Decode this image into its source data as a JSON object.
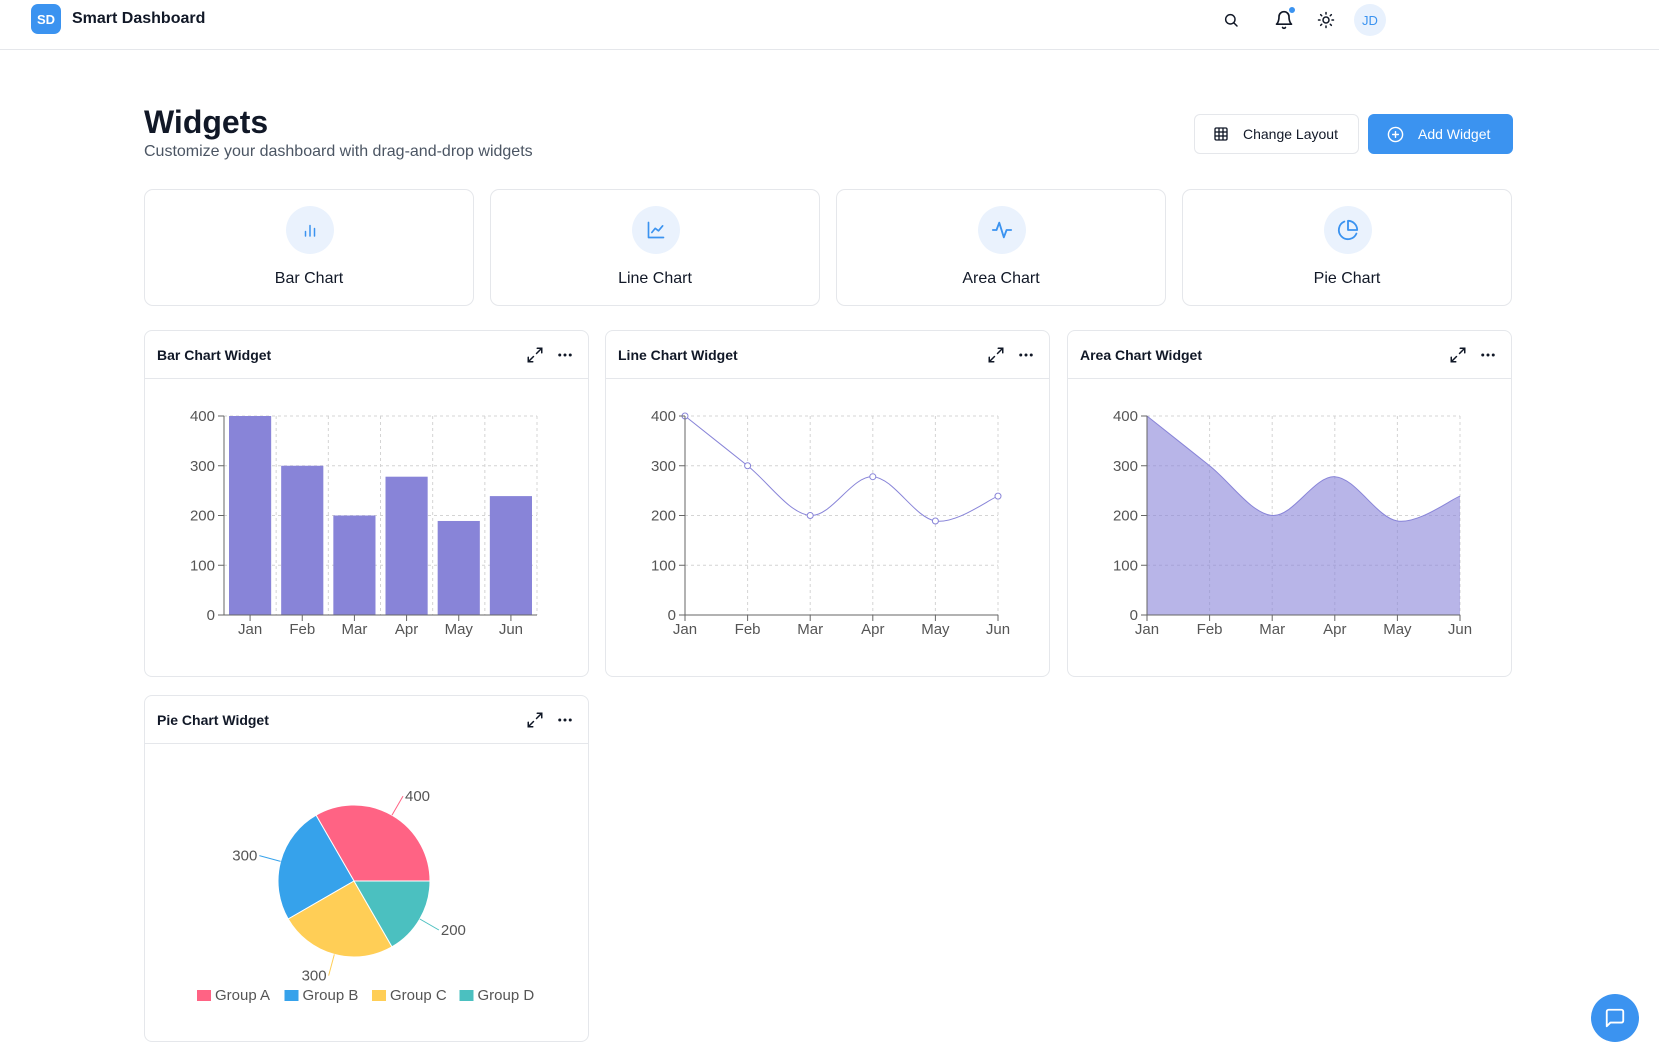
{
  "app": {
    "logo_text": "SD",
    "title": "Smart Dashboard",
    "avatar_initials": "JD",
    "accent": "#3b93f0"
  },
  "header": {
    "title": "Widgets",
    "subtitle": "Customize your dashboard with drag-and-drop widgets",
    "change_layout_label": "Change Layout",
    "add_widget_label": "Add Widget"
  },
  "widget_types": [
    {
      "label": "Bar Chart",
      "icon": "bar-chart-icon"
    },
    {
      "label": "Line Chart",
      "icon": "line-chart-icon"
    },
    {
      "label": "Area Chart",
      "icon": "activity-icon"
    },
    {
      "label": "Pie Chart",
      "icon": "pie-chart-icon"
    }
  ],
  "widgets": {
    "bar": {
      "title": "Bar Chart Widget"
    },
    "line": {
      "title": "Line Chart Widget"
    },
    "area": {
      "title": "Area Chart Widget"
    },
    "pie": {
      "title": "Pie Chart Widget"
    }
  },
  "chart_data": [
    {
      "type": "bar",
      "categories": [
        "Jan",
        "Feb",
        "Mar",
        "Apr",
        "May",
        "Jun"
      ],
      "values": [
        400,
        300,
        200,
        278,
        189,
        239
      ],
      "yticks": [
        0,
        100,
        200,
        300,
        400
      ],
      "ylim": [
        0,
        400
      ],
      "grid": true,
      "color": "#8884d8"
    },
    {
      "type": "line",
      "categories": [
        "Jan",
        "Feb",
        "Mar",
        "Apr",
        "May",
        "Jun"
      ],
      "values": [
        400,
        300,
        200,
        278,
        189,
        239
      ],
      "yticks": [
        0,
        100,
        200,
        300,
        400
      ],
      "ylim": [
        0,
        400
      ],
      "grid": true,
      "color": "#8884d8"
    },
    {
      "type": "area",
      "categories": [
        "Jan",
        "Feb",
        "Mar",
        "Apr",
        "May",
        "Jun"
      ],
      "values": [
        400,
        300,
        200,
        278,
        189,
        239
      ],
      "yticks": [
        0,
        100,
        200,
        300,
        400
      ],
      "ylim": [
        0,
        400
      ],
      "grid": true,
      "color": "#8884d8"
    },
    {
      "type": "pie",
      "slices": [
        {
          "name": "Group A",
          "value": 400,
          "label": "400",
          "color": "#ff6384"
        },
        {
          "name": "Group B",
          "value": 300,
          "label": "300",
          "color": "#36a2eb"
        },
        {
          "name": "Group C",
          "value": 300,
          "label": "300",
          "color": "#ffce56"
        },
        {
          "name": "Group D",
          "value": 200,
          "label": "200",
          "color": "#4bc0c0"
        }
      ],
      "legend": "bottom"
    }
  ]
}
